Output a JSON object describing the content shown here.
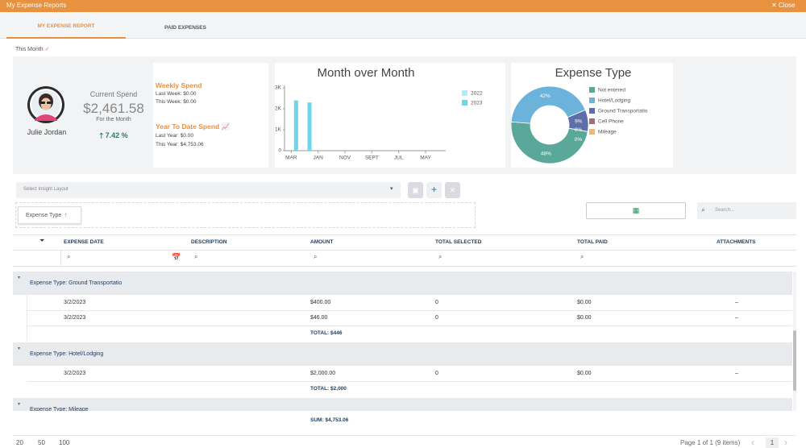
{
  "window": {
    "title": "My Expense Reports",
    "close": "Close"
  },
  "tabs": [
    "MY EXPENSE REPORT",
    "PAID EXPENSES"
  ],
  "period": "This Month",
  "profile": {
    "name": "Julie Jordan",
    "current_spend_label": "Current Spend",
    "amount": "$2,461.58",
    "sub": "For the Month",
    "change": "7.42 %"
  },
  "spend": {
    "weekly_title": "Weekly Spend",
    "last_week": "Last Week: $0.00",
    "this_week": "This Week: $0.00",
    "ytd_title": "Year To Date Spend",
    "last_year": "Last Year: $0.00",
    "this_year": "This Year: $4,753.06"
  },
  "chart_data": [
    {
      "type": "bar",
      "title": "Month over Month",
      "categories": [
        "MAR",
        null,
        "JAN",
        null,
        "NOV",
        null,
        "SEPT",
        null,
        "JUL",
        null,
        "MAY",
        null
      ],
      "series": [
        {
          "name": "2022",
          "color": "#b3ecf5",
          "values": [
            null,
            null,
            null,
            null,
            null,
            null,
            null,
            null,
            null,
            null,
            null,
            null
          ]
        },
        {
          "name": "2023",
          "color": "#6dd6e8",
          "values": [
            2400,
            2300,
            null,
            null,
            null,
            null,
            null,
            null,
            null,
            null,
            null,
            null
          ]
        }
      ],
      "ylim": [
        0,
        3000
      ],
      "yticks": [
        0,
        {
          "value": 1000,
          "label": "1K"
        },
        {
          "value": 2000,
          "label": "2K"
        },
        {
          "value": 3000,
          "label": "3K"
        }
      ]
    },
    {
      "type": "pie",
      "title": "Expense Type",
      "categories": [
        "Not entered",
        "Hotel/Lodging",
        "Ground Transportatio",
        "Cell Phone",
        "Mileage"
      ],
      "values": [
        48,
        42,
        9,
        0,
        0
      ],
      "value_labels": [
        "48%",
        "42%",
        "9%",
        "0%",
        "0%"
      ],
      "colors": [
        "#5aa89a",
        "#6cb3dc",
        "#5d6ea8",
        "#a86a73",
        "#e9b97c"
      ]
    }
  ],
  "toolbar": {
    "layout_placeholder": "Select Insight Layout",
    "group_chip": "Expense Type",
    "search_placeholder": "Search..."
  },
  "grid": {
    "columns": [
      "EXPENSE DATE",
      "DESCRIPTION",
      "AMOUNT",
      "TOTAL SELECTED",
      "TOTAL PAID",
      "ATTACHMENTS"
    ],
    "groups": [
      {
        "label": "Expense Type: Ground Transportatio",
        "rows": [
          {
            "date": "3/2/2023",
            "amount": "$400.00",
            "selected": "0",
            "paid": "$0.00",
            "attachments": "–"
          },
          {
            "date": "3/2/2023",
            "amount": "$46.00",
            "selected": "0",
            "paid": "$0.00",
            "attachments": "–"
          }
        ],
        "total": "TOTAL: $446"
      },
      {
        "label": "Expense Type: Hotel/Lodging",
        "rows": [
          {
            "date": "3/2/2023",
            "amount": "$2,000.00",
            "selected": "0",
            "paid": "$0.00",
            "attachments": "–"
          }
        ],
        "total": "TOTAL: $2,000"
      },
      {
        "label": "Expense Type: Mileage",
        "rows": []
      }
    ],
    "sum": "SUM: $4,753.06"
  },
  "pager": {
    "sizes": [
      "20",
      "50",
      "100"
    ],
    "info": "Page 1 of 1 (9 items)",
    "page": "1"
  }
}
